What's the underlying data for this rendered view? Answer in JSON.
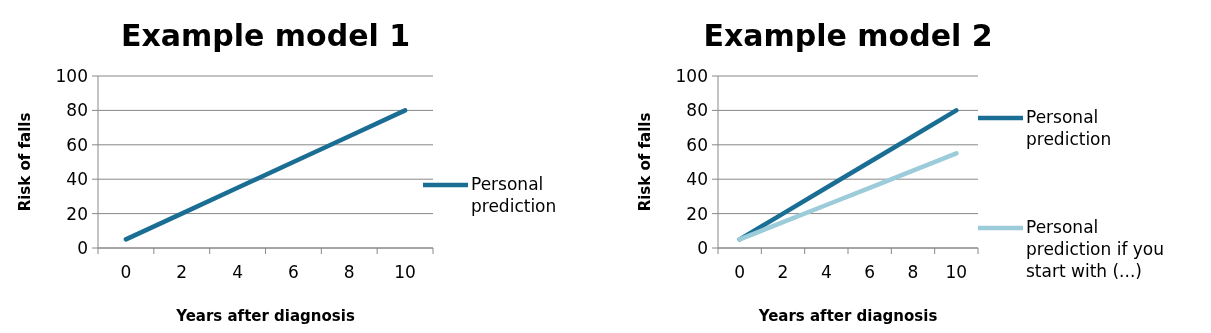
{
  "chart_data": [
    {
      "type": "line",
      "title": "Example model 1",
      "xlabel": "Years after diagnosis",
      "ylabel": "Risk of falls",
      "categories": [
        "0",
        "2",
        "4",
        "6",
        "8",
        "10"
      ],
      "series": [
        {
          "name": "Personal prediction",
          "color": "#1a6e94",
          "values": [
            5,
            20,
            35,
            50,
            65,
            80
          ]
        }
      ],
      "ylim": [
        0,
        100
      ],
      "yticks": [
        0,
        20,
        40,
        60,
        80,
        100
      ],
      "grid": "y",
      "legend": "right"
    },
    {
      "type": "line",
      "title": "Example model 2",
      "xlabel": "Years after diagnosis",
      "ylabel": "Risk of falls",
      "categories": [
        "0",
        "2",
        "4",
        "6",
        "8",
        "10"
      ],
      "series": [
        {
          "name": "Personal prediction",
          "color": "#1a6e94",
          "values": [
            5,
            20,
            35,
            50,
            65,
            80
          ]
        },
        {
          "name": " Personal prediction if you start with (...)",
          "color": "#9ccbd9",
          "values": [
            5,
            15,
            25,
            35,
            45,
            55
          ]
        }
      ],
      "ylim": [
        0,
        100
      ],
      "yticks": [
        0,
        20,
        40,
        60,
        80,
        100
      ],
      "grid": "y",
      "legend": "right"
    }
  ]
}
